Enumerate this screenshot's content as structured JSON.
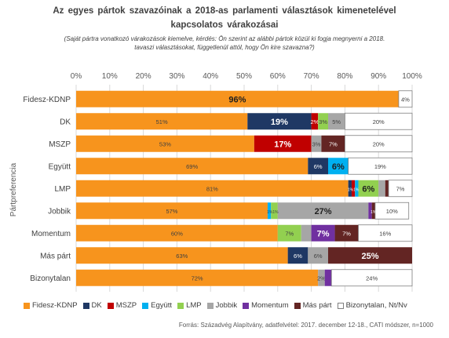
{
  "chart_data": {
    "type": "bar",
    "orientation": "horizontal",
    "stacked": true,
    "title_line1": "Az egyes pártok szavazóinak a 2018-as parlamenti választások kimenetelével",
    "title_line2": "kapcsolatos várakozásai",
    "subtitle_line1": "(Saját pártra vonatkozó várakozások kiemelve, kérdés: Ön szerint az alábbi pártok közül ki fogja megnyerni a 2018.",
    "subtitle_line2": "tavaszi választásokat, függetlenül attól, hogy Ön kire szavazna?)",
    "ylabel": "Pártpreferencia",
    "xlim": [
      0,
      100
    ],
    "x_ticks": [
      "0%",
      "10%",
      "20%",
      "30%",
      "40%",
      "50%",
      "60%",
      "70%",
      "80%",
      "90%",
      "100%"
    ],
    "grid": true,
    "legend_position": "bottom",
    "categories": [
      "Fidesz-KDNP",
      "DK",
      "MSZP",
      "Együtt",
      "LMP",
      "Jobbik",
      "Momentum",
      "Más párt",
      "Bizonytalan"
    ],
    "series": [
      {
        "name": "Fidesz-KDNP",
        "color": "#F7941D",
        "values": [
          96,
          51,
          53,
          69,
          81,
          57,
          60,
          63,
          72
        ],
        "labels": [
          "96%",
          "51%",
          "53%",
          "69%",
          "81%",
          "57%",
          "60%",
          "63%",
          "72%"
        ],
        "highlight": [
          0
        ]
      },
      {
        "name": "DK",
        "color": "#1F3864",
        "values": [
          0,
          19,
          0,
          6,
          1,
          0,
          0,
          6,
          0
        ],
        "labels": [
          "",
          "19%",
          "",
          "6%",
          "",
          "",
          "",
          "6%",
          ""
        ],
        "highlight": [
          1
        ]
      },
      {
        "name": "MSZP",
        "color": "#C00000",
        "values": [
          0,
          2,
          17,
          0,
          1,
          0,
          0,
          0,
          0
        ],
        "labels": [
          "",
          "2%",
          "17%",
          "",
          "",
          "",
          "",
          "",
          ""
        ],
        "highlight": [
          2
        ]
      },
      {
        "name": "Együtt",
        "color": "#00B0F0",
        "values": [
          0,
          0,
          0,
          6,
          1,
          1,
          0,
          0,
          0
        ],
        "labels": [
          "",
          "",
          "",
          "6%",
          "",
          "",
          "",
          "",
          ""
        ],
        "highlight": [
          3
        ]
      },
      {
        "name": "LMP",
        "color": "#92D050",
        "values": [
          0,
          3,
          0,
          0,
          6,
          2,
          7,
          0,
          0
        ],
        "labels": [
          "",
          "3%",
          "",
          "",
          "6%",
          "",
          "7%",
          "",
          ""
        ],
        "highlight": [
          4
        ]
      },
      {
        "name": "Jobbik",
        "color": "#A6A6A6",
        "values": [
          0,
          5,
          3,
          0,
          2,
          27,
          3,
          6,
          2
        ],
        "labels": [
          "",
          "5%",
          "3%",
          "",
          "",
          "27%",
          "",
          "6%",
          "2%"
        ],
        "highlight": [
          5
        ]
      },
      {
        "name": "Momentum",
        "color": "#7030A0",
        "values": [
          0,
          0,
          0,
          0,
          0,
          1,
          7,
          0,
          2
        ],
        "labels": [
          "",
          "",
          "",
          "",
          "",
          "",
          "7%",
          "",
          ""
        ],
        "highlight": [
          6
        ]
      },
      {
        "name": "Más párt",
        "color": "#632523",
        "values": [
          0,
          0,
          7,
          0,
          1,
          1,
          7,
          25,
          0
        ],
        "labels": [
          "",
          "",
          "7%",
          "",
          "",
          "",
          "7%",
          "25%",
          ""
        ],
        "highlight": [
          7
        ]
      },
      {
        "name": "Bizonytalan, Nt/Nv",
        "color": "#FFFFFF",
        "values": [
          4,
          20,
          20,
          19,
          7,
          10,
          16,
          0,
          24
        ],
        "labels": [
          "4%",
          "20%",
          "20%",
          "19%",
          "7%",
          "10%",
          "16%",
          "",
          "24%"
        ],
        "highlight": []
      }
    ],
    "inline_labels": {
      "lmp_row": "1%1%",
      "jobbik_row": "1%1%",
      "jobbik_row_right": "1%"
    },
    "source": "Forrás: Századvég Alapítvány, adatfelvétel: 2017. december 12-18., CATI módszer, n=1000"
  }
}
